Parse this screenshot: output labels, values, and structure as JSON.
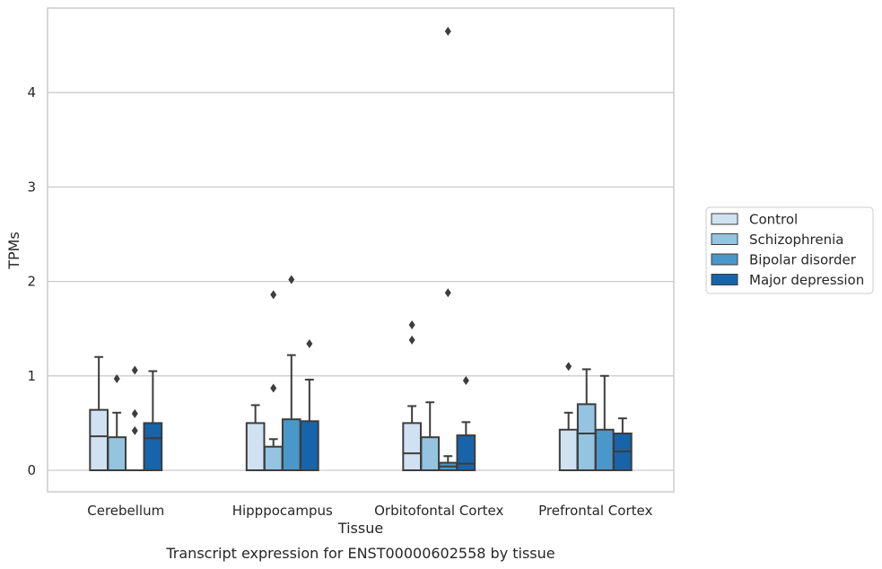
{
  "chart_data": {
    "type": "box",
    "title": "",
    "caption": "Transcript expression for ENST00000602558 by tissue",
    "xlabel": "Tissue",
    "ylabel": "TPMs",
    "ylim": [
      -0.22,
      4.9
    ],
    "yticks": [
      0,
      1,
      2,
      3,
      4
    ],
    "yticklabels": [
      "0",
      "1",
      "2",
      "3",
      "4"
    ],
    "grid": "horizontal",
    "legend_position": "right",
    "categories": [
      "Cerebellum",
      "Hipppocampus",
      "Orbitofontal Cortex",
      "Prefrontal Cortex"
    ],
    "series": [
      {
        "name": "Control",
        "color": "#d0e1f2",
        "boxes": [
          {
            "category": "Cerebellum",
            "whisker_low": 0,
            "q1": 0,
            "median": 0.36,
            "q3": 0.64,
            "whisker_high": 1.2,
            "outliers": []
          },
          {
            "category": "Hipppocampus",
            "whisker_low": 0,
            "q1": 0,
            "median": 0,
            "q3": 0.5,
            "whisker_high": 0.69,
            "outliers": []
          },
          {
            "category": "Orbitofontal Cortex",
            "whisker_low": 0,
            "q1": 0,
            "median": 0.18,
            "q3": 0.5,
            "whisker_high": 0.68,
            "outliers": [
              1.54,
              1.38
            ]
          },
          {
            "category": "Prefrontal Cortex",
            "whisker_low": 0,
            "q1": 0,
            "median": 0,
            "q3": 0.43,
            "whisker_high": 0.61,
            "outliers": [
              1.1
            ]
          }
        ]
      },
      {
        "name": "Schizophrenia",
        "color": "#94c4df",
        "boxes": [
          {
            "category": "Cerebellum",
            "whisker_low": 0,
            "q1": 0,
            "median": 0,
            "q3": 0.35,
            "whisker_high": 0.61,
            "outliers": [
              0.97
            ]
          },
          {
            "category": "Hipppocampus",
            "whisker_low": 0,
            "q1": 0,
            "median": 0,
            "q3": 0.25,
            "whisker_high": 0.33,
            "outliers": [
              1.86,
              0.87
            ]
          },
          {
            "category": "Orbitofontal Cortex",
            "whisker_low": 0,
            "q1": 0,
            "median": 0,
            "q3": 0.35,
            "whisker_high": 0.72,
            "outliers": []
          },
          {
            "category": "Prefrontal Cortex",
            "whisker_low": 0,
            "q1": 0,
            "median": 0.39,
            "q3": 0.7,
            "whisker_high": 1.07,
            "outliers": []
          }
        ]
      },
      {
        "name": "Bipolar disorder",
        "color": "#4a98c9",
        "boxes": [
          {
            "category": "Cerebellum",
            "whisker_low": 0,
            "q1": 0,
            "median": 0,
            "q3": 0,
            "whisker_high": 0,
            "outliers": [
              1.06,
              0.6,
              0.42
            ]
          },
          {
            "category": "Hipppocampus",
            "whisker_low": 0,
            "q1": 0,
            "median": 0,
            "q3": 0.54,
            "whisker_high": 1.22,
            "outliers": [
              2.02
            ]
          },
          {
            "category": "Orbitofontal Cortex",
            "whisker_low": 0,
            "q1": 0,
            "median": 0.04,
            "q3": 0.08,
            "whisker_high": 0.15,
            "outliers": [
              4.65,
              1.88
            ]
          },
          {
            "category": "Prefrontal Cortex",
            "whisker_low": 0,
            "q1": 0,
            "median": 0,
            "q3": 0.43,
            "whisker_high": 1.0,
            "outliers": []
          }
        ]
      },
      {
        "name": "Major depression",
        "color": "#1764ab",
        "boxes": [
          {
            "category": "Cerebellum",
            "whisker_low": 0,
            "q1": 0,
            "median": 0.34,
            "q3": 0.5,
            "whisker_high": 1.05,
            "outliers": []
          },
          {
            "category": "Hipppocampus",
            "whisker_low": 0,
            "q1": 0,
            "median": 0,
            "q3": 0.52,
            "whisker_high": 0.96,
            "outliers": [
              1.34
            ]
          },
          {
            "category": "Orbitofontal Cortex",
            "whisker_low": 0,
            "q1": 0,
            "median": 0.07,
            "q3": 0.37,
            "whisker_high": 0.51,
            "outliers": [
              0.95
            ]
          },
          {
            "category": "Prefrontal Cortex",
            "whisker_low": 0,
            "q1": 0,
            "median": 0.2,
            "q3": 0.39,
            "whisker_high": 0.55,
            "outliers": []
          }
        ]
      }
    ]
  }
}
